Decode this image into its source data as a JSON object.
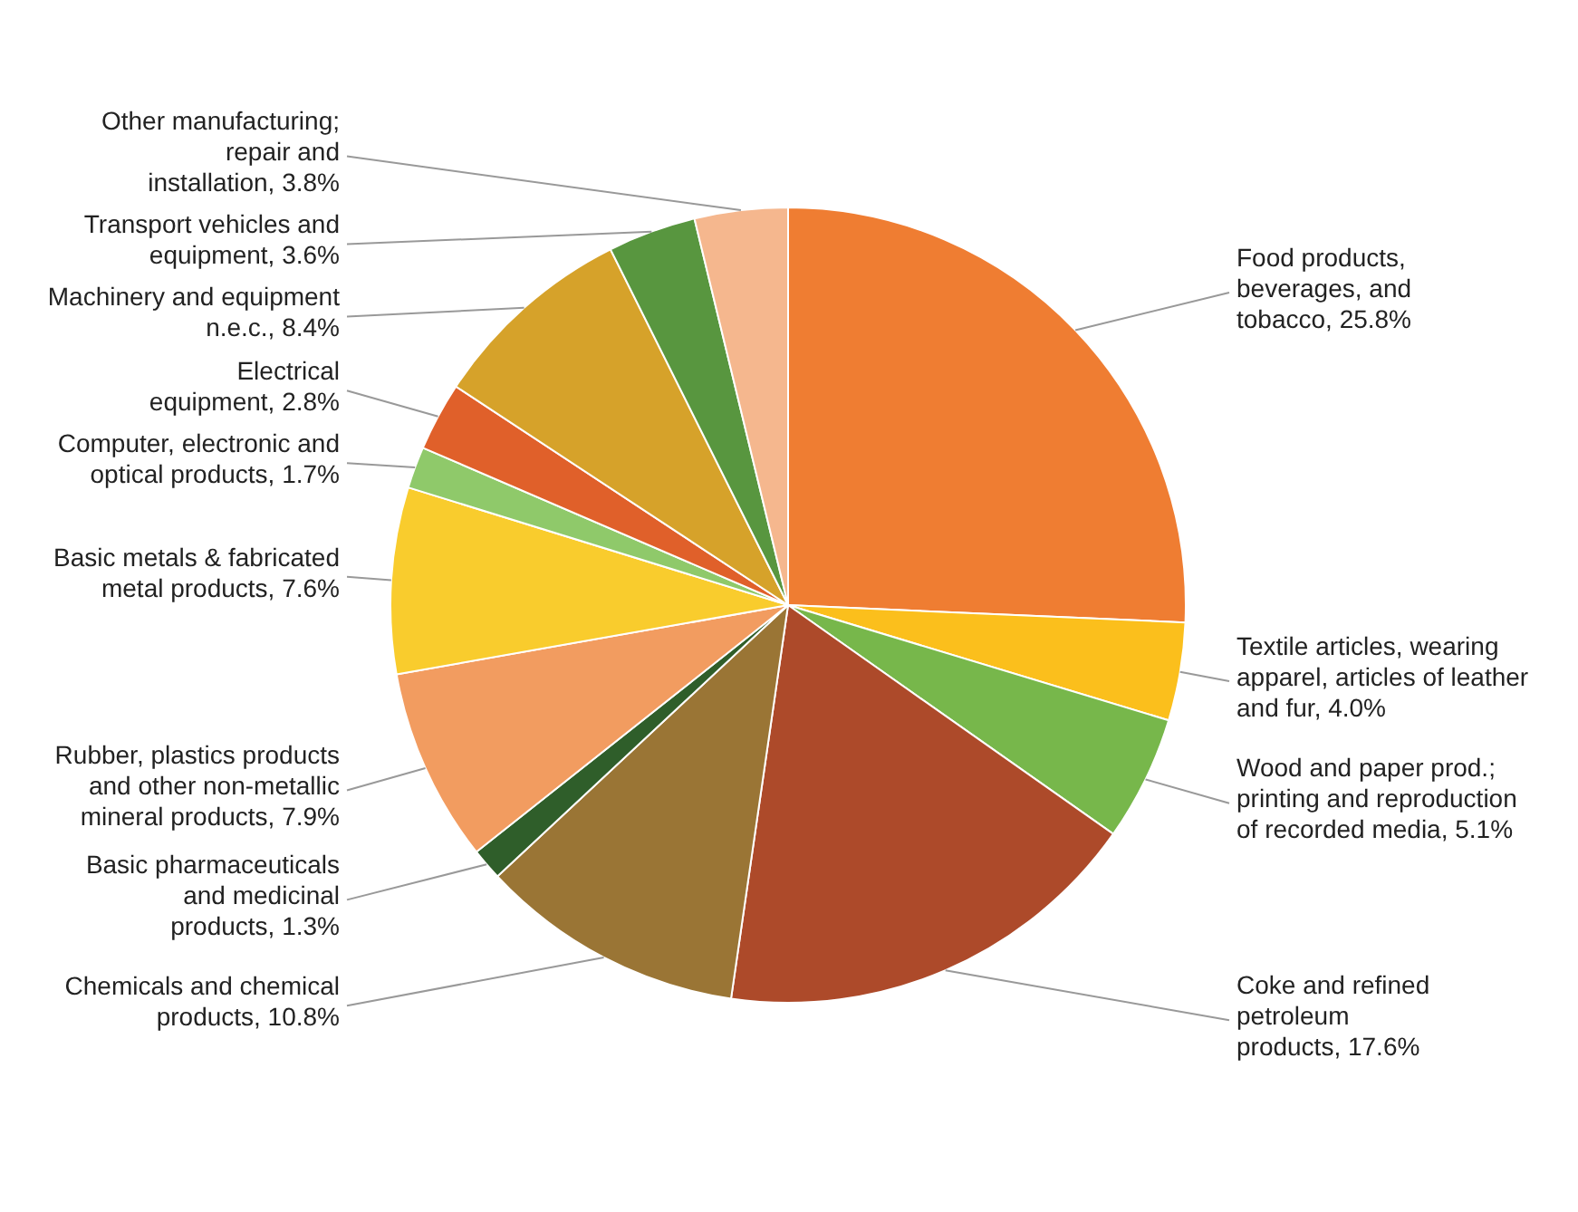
{
  "chart_data": {
    "type": "pie",
    "categories": [
      "Food products, beverages, and tobacco",
      "Textile articles, wearing apparel, articles of leather and fur",
      "Wood and paper prod.; printing and reproduction of recorded media",
      "Coke and refined petroleum products",
      "Chemicals and chemical products",
      "Basic pharmaceuticals and medicinal products",
      "Rubber, plastics products and other non-metallic mineral products",
      "Basic metals & fabricated metal products",
      "Computer, electronic and optical products",
      "Electrical equipment",
      "Machinery and equipment n.e.c.",
      "Transport vehicles and equipment",
      "Other manufacturing; repair and installation"
    ],
    "values": [
      25.8,
      4.0,
      5.1,
      17.6,
      10.8,
      1.3,
      7.9,
      7.6,
      1.7,
      2.8,
      8.4,
      3.6,
      3.8
    ],
    "value_labels": [
      "25.8%",
      "4.0%",
      "5.1%",
      "17.6%",
      "10.8%",
      "1.3%",
      "7.9%",
      "7.6%",
      "1.7%",
      "2.8%",
      "8.4%",
      "3.6%",
      "3.8%"
    ],
    "colors": [
      "#ef7d32",
      "#fbbf1c",
      "#77b74b",
      "#ad4a2a",
      "#9a7535",
      "#2f5e2a",
      "#f29c60",
      "#f9cc2d",
      "#8fc96a",
      "#e0602a",
      "#d6a22a",
      "#58963f",
      "#f5b78e"
    ]
  }
}
